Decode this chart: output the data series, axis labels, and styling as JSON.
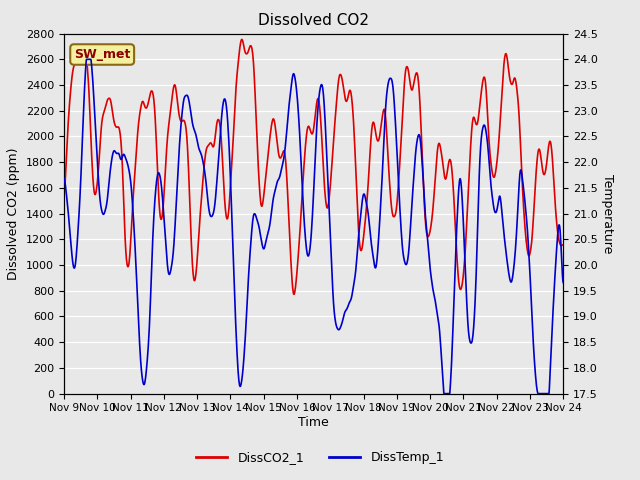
{
  "title": "Dissolved CO2",
  "xlabel": "Time",
  "ylabel_left": "Dissolved CO2 (ppm)",
  "ylabel_right": "Temperature",
  "annotation": "SW_met",
  "legend": [
    "DissCO2_1",
    "DissTemp_1"
  ],
  "co2_color": "#dd0000",
  "temp_color": "#0000cc",
  "co2_linewidth": 1.2,
  "temp_linewidth": 1.2,
  "ylim_left": [
    0,
    2800
  ],
  "ylim_right": [
    17.5,
    24.5
  ],
  "background_color": "#e8e8e8",
  "x_ticks": [
    "Nov 9",
    "Nov 10",
    "Nov 11",
    "Nov 12",
    "Nov 13",
    "Nov 14",
    "Nov 15",
    "Nov 16",
    "Nov 17",
    "Nov 18",
    "Nov 19",
    "Nov 20",
    "Nov 21",
    "Nov 22",
    "Nov 23",
    "Nov 24"
  ],
  "figsize": [
    6.4,
    4.8
  ],
  "dpi": 100
}
